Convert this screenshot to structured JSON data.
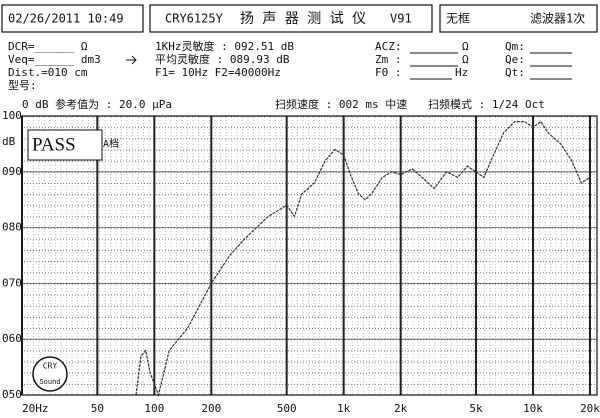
{
  "header": {
    "datetime": "02/26/2011 10:49",
    "model": "CRY6125Y",
    "title": "扬 声 器 测 试 仪",
    "version": "V91",
    "frame": "无框",
    "filter": "滤波器1次"
  },
  "params": {
    "dcr": "DCR=______ Ω",
    "veq": "Veq=______ dm3",
    "dist": "Dist.=010 cm",
    "model_no": "型号:",
    "sens_1k": "1KHz灵敏度 : 092.51 dB",
    "sens_avg": "平均灵敏度 : 089.93 dB",
    "freq_range": "F1=   10Hz  F2=40000Hz",
    "acz": "ACZ:",
    "acz_unit": "Ω",
    "zm": "Zm :",
    "zm_unit": "Ω",
    "f0": "F0 :",
    "f0_unit": "Hz",
    "qm": "Qm:",
    "qe": "Qe:",
    "qt": "Qt:"
  },
  "sweep": {
    "reference": "0 dB 参考值为 : 20.0 μPa",
    "speed": "扫频速度 : 002 ms 中速",
    "mode": "扫频模式 : 1/24 Oct"
  },
  "result": {
    "status": "PASS",
    "grade": "A档"
  },
  "logo": {
    "top": "CRY",
    "bottom": "Sound"
  },
  "chart_data": {
    "type": "line",
    "ylabel": "dB",
    "xscale": "log",
    "grid": true,
    "x": [
      80,
      85,
      90,
      95,
      100,
      105,
      120,
      150,
      200,
      250,
      300,
      400,
      500,
      550,
      600,
      700,
      800,
      900,
      1000,
      1100,
      1200,
      1300,
      1400,
      1600,
      1800,
      2000,
      2300,
      2600,
      3000,
      3500,
      4000,
      4500,
      5000,
      5500,
      6000,
      7000,
      8000,
      9000,
      10000,
      11000,
      12000,
      14000,
      16000,
      18000,
      20000
    ],
    "series": [
      {
        "color": "#333333",
        "values": [
          50,
          57,
          58,
          54,
          52,
          50,
          58,
          62,
          70,
          75,
          78,
          82,
          84,
          82,
          86,
          88,
          92,
          94,
          93,
          89,
          86,
          85,
          86,
          89,
          90,
          89.5,
          90.5,
          89,
          87,
          90,
          89,
          91,
          90,
          89,
          92,
          97,
          99,
          99,
          98,
          99,
          97,
          95,
          92,
          88,
          89
        ]
      }
    ],
    "xlim": [
      20,
      20000
    ],
    "xticks": [
      {
        "value": 20,
        "label": "20Hz"
      },
      50,
      100,
      200,
      500,
      {
        "value": 1000,
        "label": "1k"
      },
      {
        "value": 2000,
        "label": "2k"
      },
      {
        "value": 5000,
        "label": "5k"
      },
      {
        "value": 10000,
        "label": "10k"
      },
      {
        "value": 20000,
        "label": "20k"
      }
    ],
    "ylim": [
      50,
      100
    ],
    "yticks": [
      {
        "value": 50,
        "label": "050"
      },
      {
        "value": 60,
        "label": "060"
      },
      {
        "value": 70,
        "label": "070"
      },
      {
        "value": 80,
        "label": "080"
      },
      {
        "value": 90,
        "label": "090"
      },
      100
    ]
  }
}
